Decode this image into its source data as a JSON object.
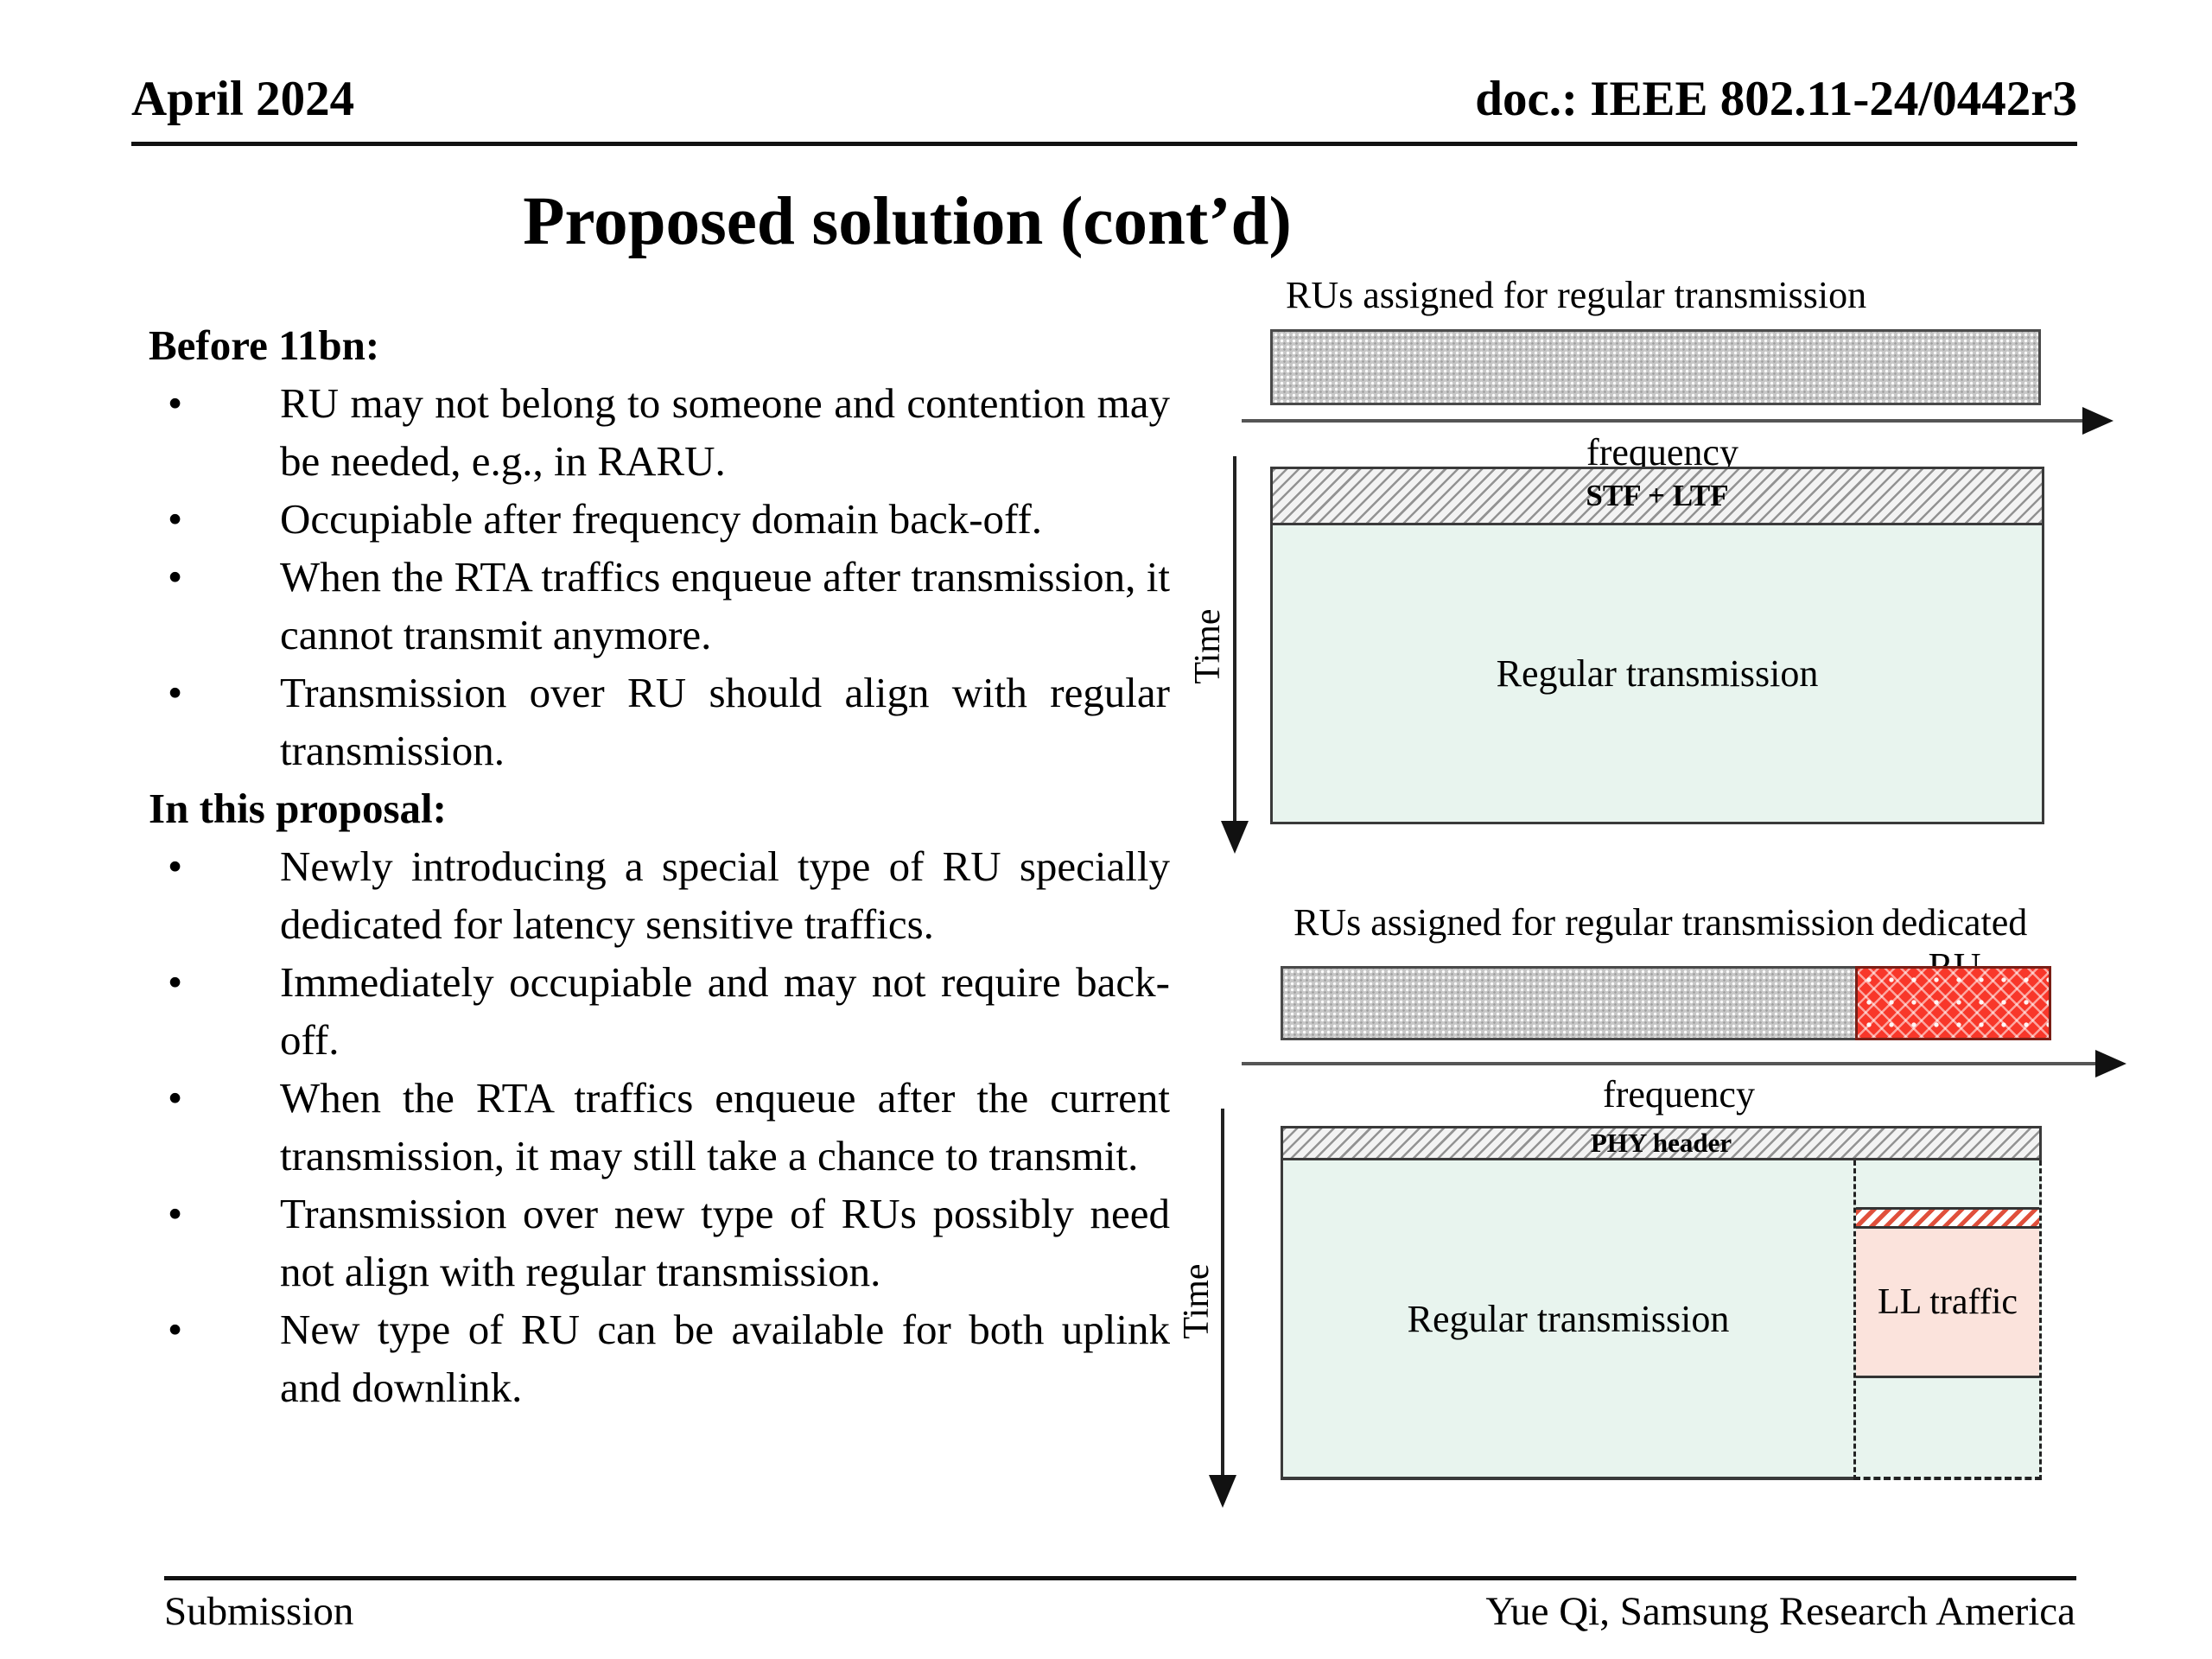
{
  "header": {
    "date": "April 2024",
    "doc": "doc.: IEEE 802.11-24/0442r3"
  },
  "title": "Proposed solution (cont’d)",
  "body": {
    "s1_heading": "Before 11bn:",
    "s1_bullets": [
      "RU may not belong to someone and contention may be needed, e.g., in RARU.",
      "Occupiable after frequency domain back-off.",
      "When the RTA traffics enqueue after transmission, it cannot transmit anymore.",
      "Transmission over RU should align with regular transmission."
    ],
    "s2_heading": "In this proposal:",
    "s2_bullets": [
      "Newly introducing a special type of RU specially dedicated for latency sensitive traffics.",
      "Immediately occupiable and may not require back-off.",
      "When the RTA traffics enqueue after the current transmission, it may still take a chance to transmit.",
      "Transmission over new type of RUs possibly need not align with regular transmission.",
      "New type of RU can be available for both uplink and downlink."
    ]
  },
  "diagram1": {
    "bar_label": "RUs assigned for regular transmission",
    "freq_label": "frequency",
    "time_label": "Time",
    "header_label": "STF + LTF",
    "body_label": "Regular transmission"
  },
  "diagram2": {
    "bar_label": "RUs assigned for regular transmission",
    "dedicated_label": "dedicated RU",
    "freq_label": "frequency",
    "time_label": "Time",
    "header_label": "PHY header",
    "body_label": "Regular transmission",
    "ll_label": "LL traffic"
  },
  "footer": {
    "left": "Submission",
    "right": "Yue Qi, Samsung Research America"
  },
  "colors": {
    "regular_fill": "#e8f4ee",
    "ll_traffic_fill": "#fbe3dc",
    "dedicated_ru_red": "#f8372a",
    "ru_bar_gray": "#c7c7c7",
    "hatch_gray": "#f3f3f3"
  }
}
